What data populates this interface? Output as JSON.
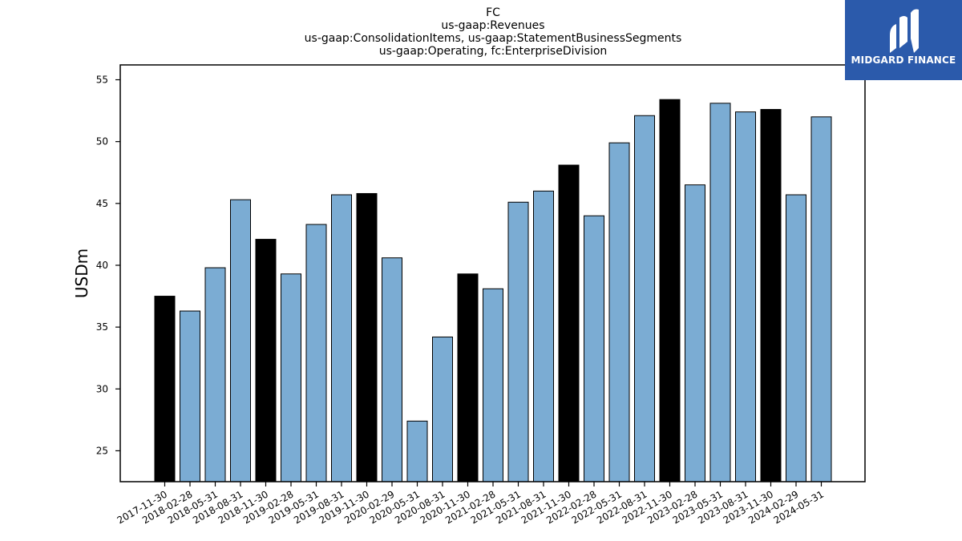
{
  "chart_data": {
    "type": "bar",
    "title_lines": [
      "FC",
      "us-gaap:Revenues",
      "us-gaap:ConsolidationItems, us-gaap:StatementBusinessSegments",
      "us-gaap:Operating, fc:EnterpriseDivision"
    ],
    "xlabel": "",
    "ylabel": "USDm",
    "ylim": [
      22.5,
      56.2
    ],
    "yticks": [
      25,
      30,
      35,
      40,
      45,
      50,
      55
    ],
    "grid": false,
    "legend": "none",
    "colors": {
      "default": "#7bacd3",
      "highlight": "#000000",
      "edge": "#000000"
    },
    "categories": [
      "2017-11-30",
      "2018-02-28",
      "2018-05-31",
      "2018-08-31",
      "2018-11-30",
      "2019-02-28",
      "2019-05-31",
      "2019-08-31",
      "2019-11-30",
      "2020-02-29",
      "2020-05-31",
      "2020-08-31",
      "2020-11-30",
      "2021-02-28",
      "2021-05-31",
      "2021-08-31",
      "2021-11-30",
      "2022-02-28",
      "2022-05-31",
      "2022-08-31",
      "2022-11-30",
      "2023-02-28",
      "2023-05-31",
      "2023-08-31",
      "2023-11-30",
      "2024-02-29",
      "2024-05-31"
    ],
    "values": [
      37.5,
      36.3,
      39.8,
      45.3,
      42.1,
      39.3,
      43.3,
      45.7,
      45.8,
      40.6,
      27.4,
      34.2,
      39.3,
      38.1,
      45.1,
      46.0,
      48.1,
      44.0,
      49.9,
      52.1,
      53.4,
      46.5,
      53.1,
      52.4,
      52.6,
      45.7,
      52.0
    ],
    "highlight": [
      true,
      false,
      false,
      false,
      true,
      false,
      false,
      false,
      true,
      false,
      false,
      false,
      true,
      false,
      false,
      false,
      true,
      false,
      false,
      false,
      true,
      false,
      false,
      false,
      true,
      false,
      false
    ]
  },
  "logo": {
    "text": "MIDGARD FINANCE",
    "background": "#2b5aab"
  }
}
